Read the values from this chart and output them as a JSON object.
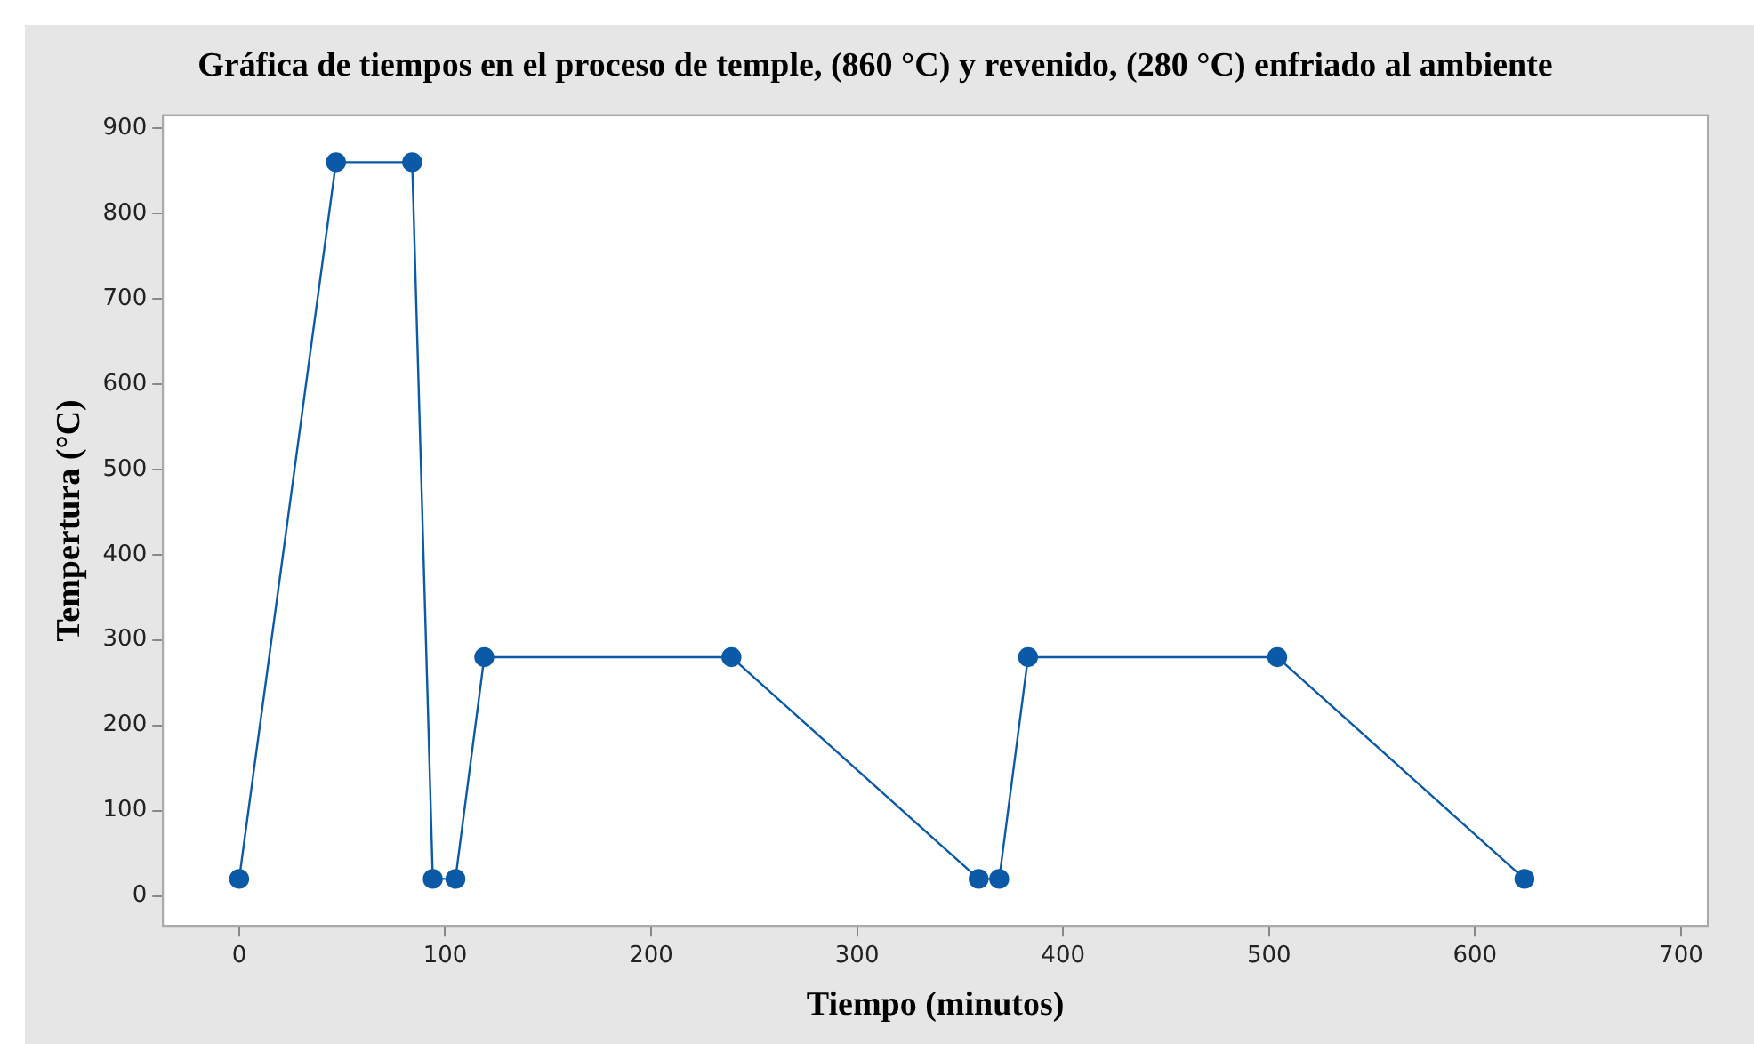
{
  "chart_data": {
    "type": "line",
    "title": "Gráfica de tiempos en el proceso de temple, (860 °C) y revenido, (280 °C) enfriado al ambiente",
    "xlabel": "Tiempo (minutos)",
    "ylabel": "Tempertura (°C)",
    "x": [
      0,
      47,
      84,
      94,
      105,
      119,
      239,
      359,
      369,
      383,
      504,
      624
    ],
    "series": [
      {
        "color": "#0b5aa8",
        "values": [
          20,
          860,
          860,
          20,
          20,
          280,
          280,
          20,
          20,
          280,
          280,
          20
        ]
      }
    ],
    "xlim": [
      -37,
      713
    ],
    "xticks": [
      0,
      100,
      200,
      300,
      400,
      500,
      600,
      700
    ],
    "ylim": [
      -35,
      915
    ],
    "yticks": [
      0,
      100,
      200,
      300,
      400,
      500,
      600,
      700,
      800,
      900
    ],
    "grid": false,
    "legend": false,
    "marker": "circle",
    "line_style": "solid"
  }
}
